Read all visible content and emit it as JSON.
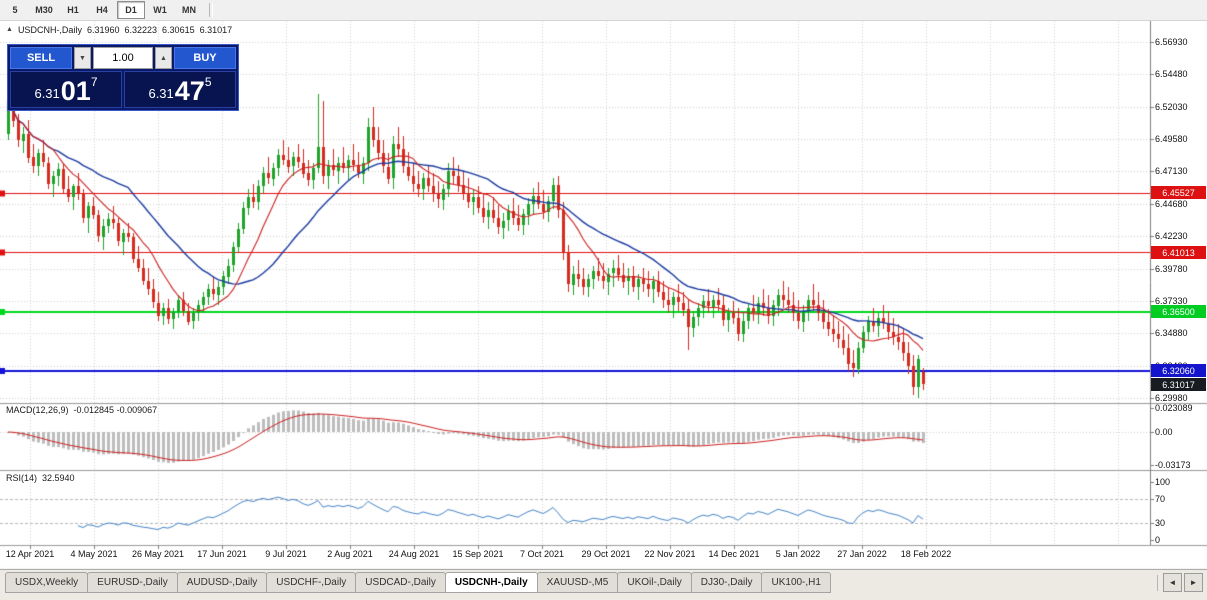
{
  "toolbar": {
    "buttons": [
      {
        "label": "5",
        "active": false
      },
      {
        "label": "M30",
        "active": false
      },
      {
        "label": "H1",
        "active": false
      },
      {
        "label": "H4",
        "active": false
      },
      {
        "label": "D1",
        "active": true
      },
      {
        "label": "W1",
        "active": false
      },
      {
        "label": "MN",
        "active": false
      }
    ]
  },
  "chart_header": {
    "direction_icon": "▲",
    "symbol": "USDCNH-,Daily",
    "open": "6.31960",
    "high": "6.32223",
    "low": "6.30615",
    "close": "6.31017"
  },
  "trade_widget": {
    "sell_label": "SELL",
    "buy_label": "BUY",
    "volume": "1.00",
    "volume_down_icon": "▼",
    "volume_up_icon": "▲",
    "sell_price": {
      "prefix": "6.31",
      "big": "01",
      "sup": "7"
    },
    "buy_price": {
      "prefix": "6.31",
      "big": "47",
      "sup": "5"
    }
  },
  "price_scale": {
    "ticks": [
      "6.56930",
      "6.54480",
      "6.52030",
      "6.49580",
      "6.47130",
      "6.44680",
      "6.42230",
      "6.39780",
      "6.37330",
      "6.34880",
      "6.32430",
      "6.29980"
    ],
    "flags": [
      {
        "name": "resistance-upper",
        "label": "6.45527",
        "bg": "#dd1111",
        "fg": "#ffffff"
      },
      {
        "name": "resistance-lower",
        "label": "6.41013",
        "bg": "#dd1111",
        "fg": "#ffffff"
      },
      {
        "name": "support-green",
        "label": "6.36500",
        "bg": "#00cc22",
        "fg": "#ffffff"
      },
      {
        "name": "support-blue",
        "label": "6.32060",
        "bg": "#1414cc",
        "fg": "#ffffff"
      },
      {
        "name": "current-price",
        "label": "6.31017",
        "bg": "#181c20",
        "fg": "#ffffff"
      }
    ]
  },
  "macd_panel": {
    "title": "MACD(12,26,9)",
    "values": "-0.012845 -0.009067",
    "ticks": [
      "0.023089",
      "0.00",
      "-0.03173"
    ]
  },
  "rsi_panel": {
    "title": "RSI(14)",
    "value": "32.5940",
    "ticks": [
      "100",
      "70",
      "30",
      "0"
    ]
  },
  "x_axis": {
    "labels": [
      "12 Apr 2021",
      "4 May 2021",
      "26 May 2021",
      "17 Jun 2021",
      "9 Jul 2021",
      "2 Aug 2021",
      "24 Aug 2021",
      "15 Sep 2021",
      "7 Oct 2021",
      "29 Oct 2021",
      "22 Nov 2021",
      "14 Dec 2021",
      "5 Jan 2022",
      "27 Jan 2022",
      "18 Feb 2022"
    ]
  },
  "tabs": {
    "items": [
      {
        "label": "USDX,Weekly",
        "active": false
      },
      {
        "label": "EURUSD-,Daily",
        "active": false
      },
      {
        "label": "AUDUSD-,Daily",
        "active": false
      },
      {
        "label": "USDCHF-,Daily",
        "active": false
      },
      {
        "label": "USDCAD-,Daily",
        "active": false
      },
      {
        "label": "USDCNH-,Daily",
        "active": true
      },
      {
        "label": "XAUUSD-,M5",
        "active": false
      },
      {
        "label": "UKOil-,Daily",
        "active": false
      },
      {
        "label": "DJ30-,Daily",
        "active": false
      },
      {
        "label": "UK100-,H1",
        "active": false
      }
    ],
    "scroll_left_icon": "◄",
    "scroll_right_icon": "►"
  },
  "colors": {
    "candle_up": "#1fa32b",
    "candle_down": "#d62b1f",
    "ma_fast": "#cc2222",
    "ma_slow": "#1c3ca0",
    "hline_red": "#e01010",
    "hline_green": "#00d81e",
    "hline_blue": "#1414d8",
    "macd_hist": "#bdbdbd",
    "macd_signal": "#cc2222",
    "rsi_line": "#4886c8",
    "grid": "#d4d4d4"
  },
  "chart_data": {
    "type": "candlestick",
    "symbol": "USDCNH",
    "timeframe": "Daily",
    "title": "USDCNH-,Daily",
    "price_range": [
      6.2998,
      6.5693
    ],
    "levels": {
      "red": [
        6.45527,
        6.41013
      ],
      "green": [
        6.365
      ],
      "blue": [
        6.3206
      ]
    },
    "current_close": 6.31017,
    "ma": {
      "fast_period": 10,
      "slow_period": 25
    },
    "macd": {
      "params": [
        12,
        26,
        9
      ],
      "range": [
        -0.03173,
        0.023089
      ],
      "current": [
        -0.012845,
        -0.009067
      ]
    },
    "rsi": {
      "period": 14,
      "range": [
        0,
        100
      ],
      "levels": [
        30,
        70
      ],
      "current": 32.594
    },
    "ohlc": [
      [
        6.5,
        6.53,
        6.495,
        6.525
      ],
      [
        6.525,
        6.528,
        6.505,
        6.51
      ],
      [
        6.51,
        6.515,
        6.49,
        6.495
      ],
      [
        6.495,
        6.505,
        6.485,
        6.5
      ],
      [
        6.5,
        6.51,
        6.478,
        6.482
      ],
      [
        6.482,
        6.492,
        6.47,
        6.475
      ],
      [
        6.475,
        6.488,
        6.468,
        6.485
      ],
      [
        6.485,
        6.495,
        6.475,
        6.478
      ],
      [
        6.478,
        6.482,
        6.458,
        6.462
      ],
      [
        6.462,
        6.472,
        6.452,
        6.468
      ],
      [
        6.468,
        6.478,
        6.46,
        6.473
      ],
      [
        6.473,
        6.477,
        6.455,
        6.458
      ],
      [
        6.458,
        6.468,
        6.448,
        6.452
      ],
      [
        6.452,
        6.462,
        6.442,
        6.46
      ],
      [
        6.46,
        6.47,
        6.45,
        6.455
      ],
      [
        6.455,
        6.458,
        6.432,
        6.436
      ],
      [
        6.436,
        6.448,
        6.425,
        6.445
      ],
      [
        6.445,
        6.452,
        6.435,
        6.438
      ],
      [
        6.438,
        6.442,
        6.418,
        6.422
      ],
      [
        6.422,
        6.435,
        6.412,
        6.43
      ],
      [
        6.43,
        6.44,
        6.425,
        6.435
      ],
      [
        6.435,
        6.445,
        6.428,
        6.432
      ],
      [
        6.432,
        6.436,
        6.415,
        6.418
      ],
      [
        6.418,
        6.428,
        6.408,
        6.425
      ],
      [
        6.425,
        6.432,
        6.418,
        6.422
      ],
      [
        6.422,
        6.425,
        6.402,
        6.405
      ],
      [
        6.405,
        6.415,
        6.395,
        6.398
      ],
      [
        6.398,
        6.405,
        6.385,
        6.388
      ],
      [
        6.388,
        6.398,
        6.378,
        6.382
      ],
      [
        6.382,
        6.39,
        6.368,
        6.372
      ],
      [
        6.372,
        6.38,
        6.358,
        6.362
      ],
      [
        6.362,
        6.372,
        6.355,
        6.368
      ],
      [
        6.368,
        6.375,
        6.356,
        6.36
      ],
      [
        6.36,
        6.368,
        6.352,
        6.365
      ],
      [
        6.365,
        6.378,
        6.36,
        6.374
      ],
      [
        6.374,
        6.38,
        6.362,
        6.366
      ],
      [
        6.366,
        6.372,
        6.355,
        6.358
      ],
      [
        6.358,
        6.368,
        6.352,
        6.364
      ],
      [
        6.364,
        6.374,
        6.358,
        6.37
      ],
      [
        6.37,
        6.38,
        6.364,
        6.376
      ],
      [
        6.376,
        6.386,
        6.37,
        6.382
      ],
      [
        6.382,
        6.392,
        6.374,
        6.378
      ],
      [
        6.378,
        6.388,
        6.37,
        6.384
      ],
      [
        6.384,
        6.396,
        6.378,
        6.392
      ],
      [
        6.392,
        6.405,
        6.386,
        6.4
      ],
      [
        6.4,
        6.418,
        6.395,
        6.414
      ],
      [
        6.414,
        6.432,
        6.41,
        6.428
      ],
      [
        6.428,
        6.448,
        6.424,
        6.444
      ],
      [
        6.444,
        6.458,
        6.438,
        6.452
      ],
      [
        6.452,
        6.462,
        6.444,
        6.448
      ],
      [
        6.448,
        6.465,
        6.442,
        6.46
      ],
      [
        6.46,
        6.475,
        6.455,
        6.47
      ],
      [
        6.47,
        6.482,
        6.462,
        6.466
      ],
      [
        6.466,
        6.478,
        6.46,
        6.474
      ],
      [
        6.474,
        6.488,
        6.468,
        6.484
      ],
      [
        6.484,
        6.495,
        6.476,
        6.48
      ],
      [
        6.48,
        6.49,
        6.47,
        6.475
      ],
      [
        6.475,
        6.486,
        6.468,
        6.482
      ],
      [
        6.482,
        6.492,
        6.474,
        6.478
      ],
      [
        6.478,
        6.488,
        6.466,
        6.47
      ],
      [
        6.47,
        6.48,
        6.46,
        6.465
      ],
      [
        6.465,
        6.478,
        6.458,
        6.474
      ],
      [
        6.474,
        6.53,
        6.47,
        6.49
      ],
      [
        6.49,
        6.525,
        6.462,
        6.468
      ],
      [
        6.468,
        6.48,
        6.458,
        6.476
      ],
      [
        6.476,
        6.488,
        6.468,
        6.472
      ],
      [
        6.472,
        6.482,
        6.462,
        6.478
      ],
      [
        6.478,
        6.49,
        6.47,
        6.474
      ],
      [
        6.474,
        6.484,
        6.464,
        6.48
      ],
      [
        6.48,
        6.492,
        6.472,
        6.476
      ],
      [
        6.476,
        6.486,
        6.466,
        6.47
      ],
      [
        6.47,
        6.482,
        6.462,
        6.478
      ],
      [
        6.478,
        6.512,
        6.472,
        6.505
      ],
      [
        6.505,
        6.52,
        6.49,
        6.495
      ],
      [
        6.495,
        6.505,
        6.48,
        6.485
      ],
      [
        6.485,
        6.495,
        6.47,
        6.475
      ],
      [
        6.475,
        6.485,
        6.462,
        6.466
      ],
      [
        6.466,
        6.498,
        6.458,
        6.492
      ],
      [
        6.492,
        6.505,
        6.482,
        6.488
      ],
      [
        6.488,
        6.498,
        6.47,
        6.475
      ],
      [
        6.475,
        6.486,
        6.464,
        6.468
      ],
      [
        6.468,
        6.478,
        6.456,
        6.462
      ],
      [
        6.462,
        6.472,
        6.452,
        6.458
      ],
      [
        6.458,
        6.47,
        6.45,
        6.466
      ],
      [
        6.466,
        6.476,
        6.456,
        6.46
      ],
      [
        6.46,
        6.47,
        6.448,
        6.454
      ],
      [
        6.454,
        6.464,
        6.444,
        6.45
      ],
      [
        6.45,
        6.462,
        6.442,
        6.458
      ],
      [
        6.458,
        6.478,
        6.452,
        6.472
      ],
      [
        6.472,
        6.482,
        6.462,
        6.468
      ],
      [
        6.468,
        6.476,
        6.456,
        6.461
      ],
      [
        6.461,
        6.472,
        6.45,
        6.455
      ],
      [
        6.455,
        6.466,
        6.444,
        6.448
      ],
      [
        6.448,
        6.458,
        6.438,
        6.452
      ],
      [
        6.452,
        6.46,
        6.44,
        6.444
      ],
      [
        6.444,
        6.454,
        6.432,
        6.437
      ],
      [
        6.437,
        6.448,
        6.428,
        6.442
      ],
      [
        6.442,
        6.452,
        6.432,
        6.436
      ],
      [
        6.436,
        6.446,
        6.424,
        6.429
      ],
      [
        6.429,
        6.44,
        6.42,
        6.434
      ],
      [
        6.434,
        6.446,
        6.426,
        6.441
      ],
      [
        6.441,
        6.451,
        6.431,
        6.436
      ],
      [
        6.436,
        6.446,
        6.426,
        6.431
      ],
      [
        6.431,
        6.443,
        6.423,
        6.439
      ],
      [
        6.439,
        6.451,
        6.431,
        6.447
      ],
      [
        6.447,
        6.459,
        6.439,
        6.453
      ],
      [
        6.453,
        6.463,
        6.443,
        6.447
      ],
      [
        6.447,
        6.457,
        6.435,
        6.441
      ],
      [
        6.441,
        6.453,
        6.433,
        6.449
      ],
      [
        6.449,
        6.466,
        6.443,
        6.461
      ],
      [
        6.461,
        6.468,
        6.436,
        6.442
      ],
      [
        6.442,
        6.448,
        6.404,
        6.41
      ],
      [
        6.41,
        6.416,
        6.38,
        6.386
      ],
      [
        6.386,
        6.4,
        6.378,
        6.394
      ],
      [
        6.394,
        6.404,
        6.384,
        6.39
      ],
      [
        6.39,
        6.398,
        6.378,
        6.384
      ],
      [
        6.384,
        6.394,
        6.376,
        6.39
      ],
      [
        6.39,
        6.4,
        6.382,
        6.396
      ],
      [
        6.396,
        6.406,
        6.388,
        6.392
      ],
      [
        6.392,
        6.402,
        6.382,
        6.388
      ],
      [
        6.388,
        6.398,
        6.378,
        6.394
      ],
      [
        6.394,
        6.404,
        6.384,
        6.398
      ],
      [
        6.398,
        6.408,
        6.388,
        6.393
      ],
      [
        6.393,
        6.402,
        6.383,
        6.388
      ],
      [
        6.388,
        6.398,
        6.378,
        6.392
      ],
      [
        6.392,
        6.4,
        6.38,
        6.384
      ],
      [
        6.384,
        6.394,
        6.374,
        6.39
      ],
      [
        6.39,
        6.398,
        6.38,
        6.386
      ],
      [
        6.386,
        6.396,
        6.376,
        6.382
      ],
      [
        6.382,
        6.392,
        6.372,
        6.388
      ],
      [
        6.388,
        6.396,
        6.376,
        6.38
      ],
      [
        6.38,
        6.388,
        6.368,
        6.374
      ],
      [
        6.374,
        6.384,
        6.364,
        6.37
      ],
      [
        6.37,
        6.38,
        6.36,
        6.376
      ],
      [
        6.376,
        6.386,
        6.366,
        6.372
      ],
      [
        6.372,
        6.38,
        6.362,
        6.367
      ],
      [
        6.367,
        6.374,
        6.336,
        6.353
      ],
      [
        6.353,
        6.366,
        6.346,
        6.361
      ],
      [
        6.361,
        6.372,
        6.354,
        6.368
      ],
      [
        6.368,
        6.378,
        6.36,
        6.373
      ],
      [
        6.373,
        6.382,
        6.364,
        6.369
      ],
      [
        6.369,
        6.378,
        6.36,
        6.374
      ],
      [
        6.374,
        6.383,
        6.366,
        6.37
      ],
      [
        6.37,
        6.378,
        6.354,
        6.359
      ],
      [
        6.359,
        6.368,
        6.35,
        6.364
      ],
      [
        6.364,
        6.373,
        6.356,
        6.36
      ],
      [
        6.36,
        6.368,
        6.343,
        6.348
      ],
      [
        6.348,
        6.364,
        6.342,
        6.358
      ],
      [
        6.358,
        6.372,
        6.352,
        6.368
      ],
      [
        6.368,
        6.378,
        6.358,
        6.364
      ],
      [
        6.364,
        6.376,
        6.356,
        6.372
      ],
      [
        6.372,
        6.382,
        6.362,
        6.368
      ],
      [
        6.368,
        6.378,
        6.356,
        6.362
      ],
      [
        6.362,
        6.374,
        6.354,
        6.37
      ],
      [
        6.37,
        6.382,
        6.362,
        6.378
      ],
      [
        6.378,
        6.388,
        6.368,
        6.374
      ],
      [
        6.374,
        6.384,
        6.364,
        6.37
      ],
      [
        6.37,
        6.38,
        6.358,
        6.364
      ],
      [
        6.364,
        6.374,
        6.352,
        6.358
      ],
      [
        6.358,
        6.37,
        6.35,
        6.366
      ],
      [
        6.366,
        6.378,
        6.358,
        6.374
      ],
      [
        6.374,
        6.386,
        6.366,
        6.37
      ],
      [
        6.37,
        6.38,
        6.358,
        6.364
      ],
      [
        6.364,
        6.374,
        6.352,
        6.357
      ],
      [
        6.357,
        6.367,
        6.347,
        6.352
      ],
      [
        6.352,
        6.362,
        6.342,
        6.348
      ],
      [
        6.348,
        6.358,
        6.338,
        6.344
      ],
      [
        6.344,
        6.354,
        6.332,
        6.338
      ],
      [
        6.338,
        6.348,
        6.32,
        6.326
      ],
      [
        6.326,
        6.336,
        6.316,
        6.322
      ],
      [
        6.322,
        6.342,
        6.318,
        6.338
      ],
      [
        6.338,
        6.354,
        6.334,
        6.35
      ],
      [
        6.35,
        6.362,
        6.344,
        6.358
      ],
      [
        6.358,
        6.368,
        6.35,
        6.354
      ],
      [
        6.354,
        6.364,
        6.346,
        6.36
      ],
      [
        6.36,
        6.37,
        6.352,
        6.356
      ],
      [
        6.356,
        6.366,
        6.344,
        6.35
      ],
      [
        6.35,
        6.36,
        6.34,
        6.346
      ],
      [
        6.346,
        6.356,
        6.336,
        6.342
      ],
      [
        6.342,
        6.352,
        6.328,
        6.334
      ],
      [
        6.334,
        6.342,
        6.318,
        6.324
      ],
      [
        6.324,
        6.332,
        6.302,
        6.308
      ],
      [
        6.308,
        6.332,
        6.3,
        6.329
      ],
      [
        6.3196,
        6.3222,
        6.3062,
        6.3102
      ]
    ]
  }
}
